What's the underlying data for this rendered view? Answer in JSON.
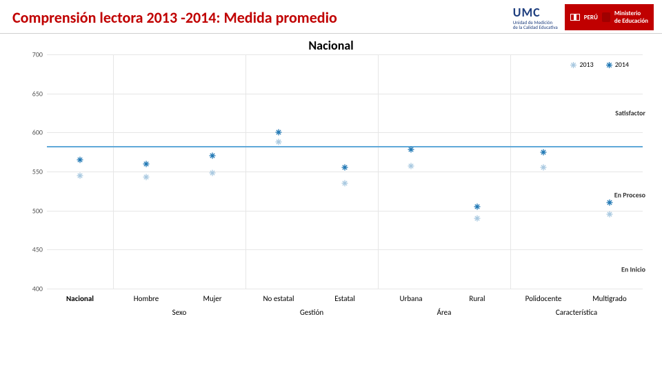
{
  "header": {
    "title": "Comprensión lectora 2013 -2014: Medida promedio",
    "umc_big": "UMC",
    "umc_small1": "Unidad de Medición",
    "umc_small2": "de la Calidad Educativa",
    "peru": "PERÚ",
    "ministerio1": "Ministerio",
    "ministerio2": "de Educación"
  },
  "subtitle": "Nacional",
  "chart": {
    "type": "scatter",
    "ylim": [
      400,
      700
    ],
    "ytick_step": 50,
    "background_color": "#ffffff",
    "grid_color": "#e6e6e6",
    "label_fontsize": 10,
    "categories": [
      "Nacional",
      "Hombre",
      "Mujer",
      "No estatal",
      "Estatal",
      "Urbana",
      "Rural",
      "Polidocente",
      "Multigrado"
    ],
    "groups": [
      {
        "label": "Sexo",
        "cols": [
          1,
          2
        ]
      },
      {
        "label": "Gestión",
        "cols": [
          3,
          4
        ]
      },
      {
        "label": "Área",
        "cols": [
          5,
          6
        ]
      },
      {
        "label": "Característica",
        "cols": [
          7,
          8
        ]
      }
    ],
    "bold_categories": [
      0
    ],
    "series": [
      {
        "name": "2013",
        "marker": "burst",
        "color": "#a8c8e0",
        "values": [
          545,
          543,
          548,
          588,
          535,
          557,
          490,
          555,
          495
        ]
      },
      {
        "name": "2014",
        "marker": "burst",
        "color": "#1f77b4",
        "values": [
          565,
          560,
          570,
          600,
          555,
          578,
          505,
          575,
          510
        ]
      }
    ],
    "bands": [
      {
        "label": "Satisfactor",
        "y": 625
      },
      {
        "label": "En Proceso",
        "y": 520
      },
      {
        "label": "En Inicio",
        "y": 425
      }
    ],
    "band_line_y": 583,
    "band_line_color": "#5fa8d8"
  }
}
